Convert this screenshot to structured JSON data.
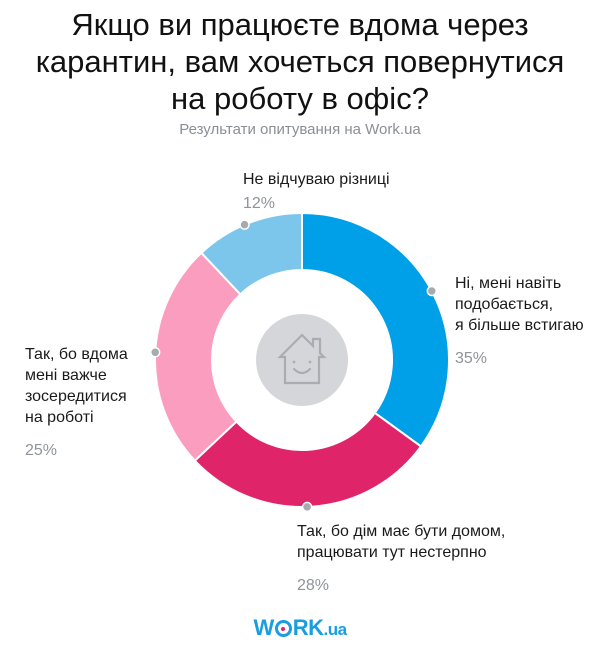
{
  "header": {
    "title_lines": [
      "Якщо ви працюєте вдома через",
      "карантин, вам хочеться повернутися",
      "на роботу в офіс?"
    ],
    "subtitle": "Результати опитування на Work.ua"
  },
  "labels": {
    "yes_like": {
      "lines": [
        "Ні, мені навіть",
        "подобається,",
        "я більше встигаю"
      ],
      "pct": "35%"
    },
    "home_is_home": {
      "lines": [
        "Так, бо дім має бути домом,",
        "працювати тут нестерпно"
      ],
      "pct": "28%"
    },
    "hard_focus": {
      "lines": [
        "Так, бо вдома",
        "мені важче",
        "зосередитися",
        "на роботі"
      ],
      "pct": "25%"
    },
    "no_diff": {
      "lines": [
        "Не відчуваю різниці"
      ],
      "pct": "12%"
    }
  },
  "logo": {
    "main_w": "W",
    "main_rk": "RK",
    "suffix": ".ua"
  },
  "center_icon": "smiling-house-icon",
  "colors": {
    "blue": "#00a0e9",
    "magenta": "#e0246a",
    "pink": "#fa9dbf",
    "light_blue": "#7cc6ec",
    "center_circle": "#d4d6d9",
    "dot": "#a7abb0"
  },
  "chart_data": {
    "type": "pie",
    "variant": "donut",
    "title": "Якщо ви працюєте вдома через карантин, вам хочеться повернутися на роботу в офіс?",
    "subtitle": "Результати опитування на Work.ua",
    "categories": [
      "Ні, мені навіть подобається, я більше встигаю",
      "Так, бо дім має бути домом, працювати тут нестерпно",
      "Так, бо вдома мені важче зосередитися на роботі",
      "Не відчуваю різниці"
    ],
    "values": [
      35,
      28,
      25,
      12
    ],
    "unit": "%",
    "colors": [
      "#00a0e9",
      "#e0246a",
      "#fa9dbf",
      "#7cc6ec"
    ],
    "start_angle_deg": 0,
    "direction": "clockwise",
    "legend": "none (direct labels)"
  }
}
